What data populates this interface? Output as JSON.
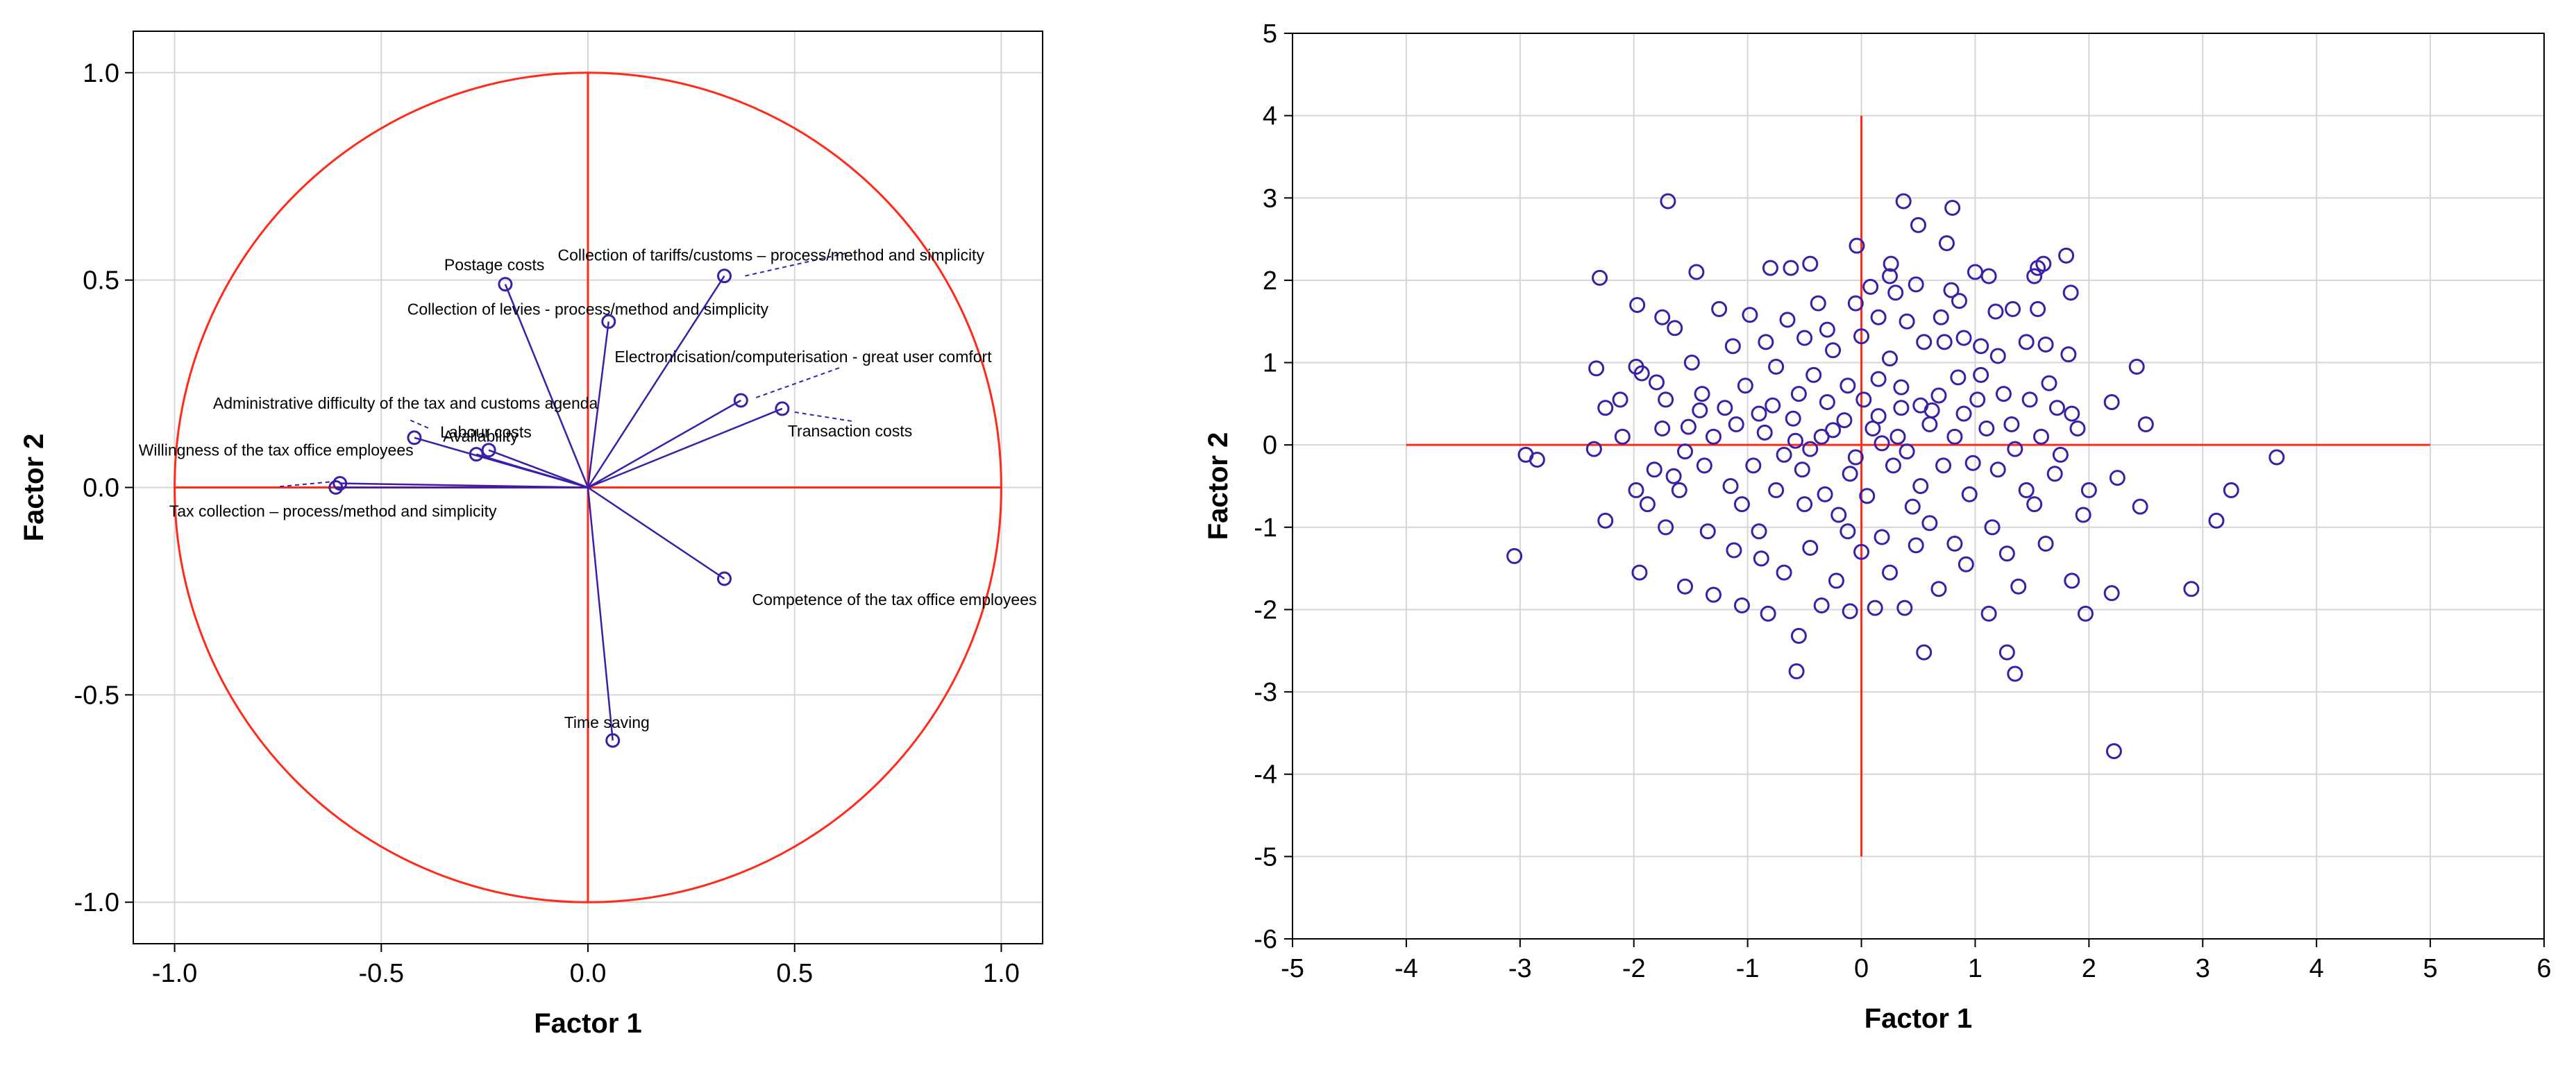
{
  "colors": {
    "axis_lines": "#ff2a1a",
    "points": "#3b1fa8",
    "grid": "#d6d6d6"
  },
  "chart_data": [
    {
      "type": "scatter",
      "subtype": "correlation-circle",
      "title": "",
      "xlabel": "Factor 1",
      "ylabel": "Factor 2",
      "xlim": [
        -1.1,
        1.1
      ],
      "ylim": [
        -1.1,
        1.1
      ],
      "xticks": [
        -1.0,
        -0.5,
        0.0,
        0.5,
        1.0
      ],
      "yticks": [
        1.0,
        0.5,
        0.0,
        -0.5,
        -1.0
      ],
      "xtick_labels": [
        "-1.0",
        "-0.5",
        "0.0",
        "0.5",
        "1.0"
      ],
      "ytick_labels": [
        "1.0",
        "0.5",
        "0.0",
        "-0.5",
        "-1.0"
      ],
      "grid": true,
      "unit_circle_radius": 1.0,
      "variables": [
        {
          "name": "Postage costs",
          "x": -0.2,
          "y": 0.49
        },
        {
          "name": "Collection of tariffs/customs – process/method and simplicity",
          "x": 0.33,
          "y": 0.51
        },
        {
          "name": "Collection of levies - process/method and simplicity",
          "x": 0.05,
          "y": 0.4
        },
        {
          "name": "Electronicisation/computerisation - great user comfort",
          "x": 0.37,
          "y": 0.21
        },
        {
          "name": "Transaction costs",
          "x": 0.47,
          "y": 0.19
        },
        {
          "name": "Labour costs",
          "x": -0.24,
          "y": 0.09
        },
        {
          "name": "Administrative difficulty of the tax and customs agenda",
          "x": -0.42,
          "y": 0.12
        },
        {
          "name": "Availability",
          "x": -0.27,
          "y": 0.08
        },
        {
          "name": "Willingness of the tax office employees",
          "x": -0.6,
          "y": 0.01
        },
        {
          "name": "Tax collection – process/method and simplicity",
          "x": -0.61,
          "y": 0.0
        },
        {
          "name": "Competence of the tax office employees",
          "x": 0.33,
          "y": -0.22
        },
        {
          "name": "Time saving",
          "x": 0.06,
          "y": -0.61
        }
      ]
    },
    {
      "type": "scatter",
      "subtype": "factor-scores",
      "title": "",
      "xlabel": "Factor 1",
      "ylabel": "Factor 2",
      "xlim": [
        -5,
        6
      ],
      "ylim": [
        -6,
        5
      ],
      "xticks": [
        -5,
        -4,
        -3,
        -2,
        -1,
        0,
        1,
        2,
        3,
        4,
        5,
        6
      ],
      "yticks": [
        5,
        4,
        3,
        2,
        1,
        0,
        -1,
        -2,
        -3,
        -4,
        -5,
        -6
      ],
      "xtick_labels": [
        "-5",
        "-4",
        "-3",
        "-2",
        "-1",
        "0",
        "1",
        "2",
        "3",
        "4",
        "5",
        "6"
      ],
      "ytick_labels": [
        "5",
        "4",
        "3",
        "2",
        "1",
        "0",
        "-1",
        "-2",
        "-3",
        "-4",
        "-5",
        "-6"
      ],
      "grid": true,
      "reference_lines": {
        "horizontal": {
          "y": 0,
          "x_from": -4,
          "x_to": 5
        },
        "vertical": {
          "x": 0,
          "y_from": -5,
          "y_to": 4
        }
      },
      "points": [
        [
          -1.7,
          2.96
        ],
        [
          0.37,
          2.96
        ],
        [
          0.8,
          2.88
        ],
        [
          0.5,
          2.67
        ],
        [
          -2.3,
          2.03
        ],
        [
          -0.45,
          2.2
        ],
        [
          0.26,
          2.2
        ],
        [
          0.75,
          2.45
        ],
        [
          -0.04,
          2.42
        ],
        [
          -1.45,
          2.1
        ],
        [
          -0.8,
          2.15
        ],
        [
          -0.62,
          2.15
        ],
        [
          1.55,
          2.15
        ],
        [
          1.6,
          2.2
        ],
        [
          1.8,
          2.3
        ],
        [
          1.0,
          2.1
        ],
        [
          1.12,
          2.05
        ],
        [
          1.52,
          2.05
        ],
        [
          -1.97,
          1.7
        ],
        [
          -1.75,
          1.55
        ],
        [
          -1.64,
          1.42
        ],
        [
          -1.25,
          1.65
        ],
        [
          -0.98,
          1.58
        ],
        [
          -0.65,
          1.52
        ],
        [
          -0.38,
          1.72
        ],
        [
          -0.05,
          1.72
        ],
        [
          0.3,
          1.85
        ],
        [
          0.08,
          1.92
        ],
        [
          0.25,
          2.05
        ],
        [
          0.48,
          1.95
        ],
        [
          0.86,
          1.75
        ],
        [
          0.79,
          1.88
        ],
        [
          1.18,
          1.62
        ],
        [
          1.33,
          1.65
        ],
        [
          1.55,
          1.65
        ],
        [
          1.84,
          1.85
        ],
        [
          -2.33,
          0.93
        ],
        [
          -1.93,
          0.87
        ],
        [
          -1.49,
          1.0
        ],
        [
          -1.13,
          1.2
        ],
        [
          -0.84,
          1.25
        ],
        [
          -0.5,
          1.3
        ],
        [
          -0.25,
          1.15
        ],
        [
          0.0,
          1.32
        ],
        [
          0.15,
          1.55
        ],
        [
          0.4,
          1.5
        ],
        [
          0.55,
          1.25
        ],
        [
          0.73,
          1.25
        ],
        [
          0.9,
          1.3
        ],
        [
          1.05,
          1.2
        ],
        [
          1.2,
          1.08
        ],
        [
          1.45,
          1.25
        ],
        [
          1.62,
          1.22
        ],
        [
          1.82,
          1.1
        ],
        [
          2.42,
          0.95
        ],
        [
          -2.35,
          -0.05
        ],
        [
          -2.25,
          0.45
        ],
        [
          -2.12,
          0.55
        ],
        [
          -1.98,
          0.95
        ],
        [
          -1.8,
          0.76
        ],
        [
          -1.72,
          0.55
        ],
        [
          -1.4,
          0.62
        ],
        [
          -1.2,
          0.45
        ],
        [
          -1.02,
          0.72
        ],
        [
          -0.78,
          0.48
        ],
        [
          -0.55,
          0.62
        ],
        [
          -0.3,
          0.52
        ],
        [
          -0.12,
          0.72
        ],
        [
          0.02,
          0.55
        ],
        [
          0.15,
          0.8
        ],
        [
          0.35,
          0.7
        ],
        [
          0.52,
          0.48
        ],
        [
          0.68,
          0.6
        ],
        [
          0.85,
          0.82
        ],
        [
          1.02,
          0.55
        ],
        [
          1.25,
          0.62
        ],
        [
          1.48,
          0.55
        ],
        [
          1.72,
          0.45
        ],
        [
          1.85,
          0.38
        ],
        [
          2.2,
          0.52
        ],
        [
          2.5,
          0.25
        ],
        [
          -1.75,
          0.2
        ],
        [
          -1.52,
          0.22
        ],
        [
          -1.3,
          0.1
        ],
        [
          -1.1,
          0.25
        ],
        [
          -0.85,
          0.15
        ],
        [
          -0.6,
          0.32
        ],
        [
          -0.35,
          0.1
        ],
        [
          -0.15,
          0.3
        ],
        [
          0.1,
          0.2
        ],
        [
          0.32,
          0.1
        ],
        [
          0.6,
          0.25
        ],
        [
          0.82,
          0.1
        ],
        [
          1.1,
          0.2
        ],
        [
          1.32,
          0.25
        ],
        [
          1.58,
          0.1
        ],
        [
          1.9,
          0.2
        ],
        [
          -2.95,
          -0.12
        ],
        [
          -3.05,
          -1.35
        ],
        [
          -2.85,
          -0.18
        ],
        [
          -2.25,
          -0.92
        ],
        [
          -1.98,
          -0.55
        ],
        [
          -1.82,
          -0.3
        ],
        [
          -1.6,
          -0.55
        ],
        [
          -1.38,
          -0.25
        ],
        [
          -1.15,
          -0.5
        ],
        [
          -0.95,
          -0.25
        ],
        [
          -0.75,
          -0.55
        ],
        [
          -0.52,
          -0.3
        ],
        [
          -0.32,
          -0.6
        ],
        [
          -0.1,
          -0.35
        ],
        [
          0.05,
          -0.62
        ],
        [
          0.28,
          -0.25
        ],
        [
          0.52,
          -0.5
        ],
        [
          0.72,
          -0.25
        ],
        [
          0.95,
          -0.6
        ],
        [
          1.2,
          -0.3
        ],
        [
          1.45,
          -0.55
        ],
        [
          1.7,
          -0.35
        ],
        [
          1.95,
          -0.85
        ],
        [
          2.25,
          -0.4
        ],
        [
          2.45,
          -0.75
        ],
        [
          3.12,
          -0.92
        ],
        [
          3.25,
          -0.55
        ],
        [
          3.65,
          -0.15
        ],
        [
          -1.95,
          -1.55
        ],
        [
          -1.72,
          -1.0
        ],
        [
          -1.55,
          -1.72
        ],
        [
          -1.35,
          -1.05
        ],
        [
          -1.12,
          -1.28
        ],
        [
          -0.9,
          -1.05
        ],
        [
          -0.68,
          -1.55
        ],
        [
          -0.45,
          -1.25
        ],
        [
          -0.22,
          -1.65
        ],
        [
          0.0,
          -1.3
        ],
        [
          0.25,
          -1.55
        ],
        [
          0.48,
          -1.22
        ],
        [
          0.68,
          -1.75
        ],
        [
          0.92,
          -1.45
        ],
        [
          1.15,
          -1.0
        ],
        [
          1.38,
          -1.72
        ],
        [
          1.62,
          -1.2
        ],
        [
          1.85,
          -1.65
        ],
        [
          2.2,
          -1.8
        ],
        [
          2.9,
          -1.75
        ],
        [
          -1.3,
          -1.82
        ],
        [
          -1.05,
          -1.95
        ],
        [
          -0.82,
          -2.05
        ],
        [
          -0.55,
          -2.32
        ],
        [
          -0.35,
          -1.95
        ],
        [
          -0.1,
          -2.02
        ],
        [
          0.12,
          -1.98
        ],
        [
          0.38,
          -1.98
        ],
        [
          0.55,
          -2.52
        ],
        [
          1.12,
          -2.05
        ],
        [
          1.28,
          -2.52
        ],
        [
          1.35,
          -2.78
        ],
        [
          1.97,
          -2.05
        ],
        [
          -0.57,
          -2.75
        ],
        [
          2.22,
          -3.72
        ],
        [
          -0.58,
          0.05
        ],
        [
          -0.45,
          -0.05
        ],
        [
          -0.25,
          0.18
        ],
        [
          0.18,
          0.02
        ],
        [
          0.4,
          -0.08
        ],
        [
          -0.68,
          -0.12
        ],
        [
          0.15,
          0.35
        ],
        [
          -0.05,
          -0.15
        ],
        [
          0.62,
          0.42
        ],
        [
          -0.9,
          0.38
        ],
        [
          1.35,
          -0.05
        ],
        [
          -1.55,
          -0.08
        ],
        [
          0.9,
          0.38
        ],
        [
          -0.2,
          -0.85
        ],
        [
          0.6,
          -0.95
        ],
        [
          -0.42,
          0.85
        ],
        [
          0.25,
          1.05
        ],
        [
          1.05,
          0.85
        ],
        [
          -1.05,
          -0.72
        ],
        [
          1.52,
          -0.72
        ],
        [
          -0.75,
          0.95
        ],
        [
          0.45,
          -0.75
        ],
        [
          -0.3,
          1.4
        ],
        [
          0.7,
          1.55
        ],
        [
          -1.65,
          -0.38
        ],
        [
          1.75,
          -0.12
        ],
        [
          -2.1,
          0.1
        ],
        [
          2.0,
          -0.55
        ],
        [
          -0.12,
          -1.05
        ],
        [
          0.98,
          -0.22
        ],
        [
          -1.42,
          0.42
        ],
        [
          0.35,
          0.45
        ],
        [
          -0.5,
          -0.72
        ],
        [
          1.28,
          -1.32
        ],
        [
          -0.88,
          -1.38
        ],
        [
          0.18,
          -1.12
        ],
        [
          1.65,
          0.75
        ],
        [
          -1.88,
          -0.72
        ],
        [
          0.82,
          -1.2
        ]
      ]
    }
  ]
}
